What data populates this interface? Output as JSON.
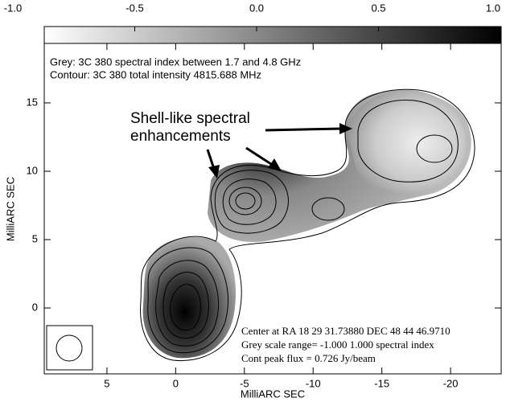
{
  "chart_data": {
    "type": "image",
    "legend_lines": [
      "Grey: 3C 380  spectral index between 1.7 and 4.8 GHz",
      "Contour: 3C 380  total intensity  4815.688 MHz"
    ],
    "annotation_lines": [
      "Shell-like spectral",
      "enhancements"
    ],
    "info_lines": [
      "Center at RA 18 29 31.73880  DEC 48 44 46.9710",
      "Grey scale range= -1.000 1.000 spectral index",
      "Cont peak flux =  0.726 Jy/beam"
    ],
    "xlabel": "MilliARC SEC",
    "ylabel": "MilliARC SEC",
    "xlim": [
      9.56,
      -23.68
    ],
    "xticks": [
      5,
      0,
      -5,
      -10,
      -15,
      -20
    ],
    "ylim": [
      -4.82,
      19.35
    ],
    "yticks": [
      0,
      5,
      10,
      15
    ],
    "colorbar_lim": [
      -1,
      1
    ],
    "colorbar_ticks": [
      {
        "value": -1,
        "label": "-1.0"
      },
      -0.5,
      {
        "value": 0,
        "label": "0.0"
      },
      0.5,
      {
        "value": 1,
        "label": "1.0"
      }
    ]
  }
}
